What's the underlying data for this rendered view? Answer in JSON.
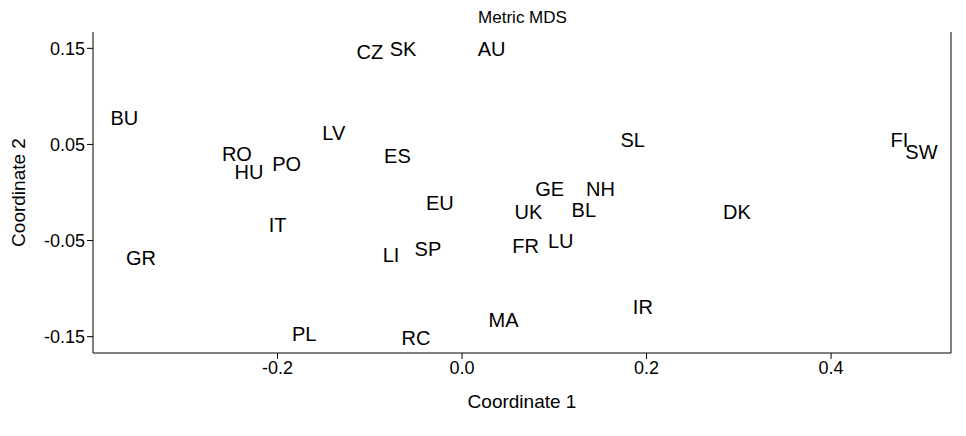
{
  "chart_data": {
    "type": "scatter",
    "title": "Metric MDS",
    "x_label": "Coordinate 1",
    "y_label": "Coordinate 2",
    "labels": [
      "BU",
      "CZ",
      "SK",
      "AU",
      "LV",
      "RO",
      "HU",
      "PO",
      "ES",
      "SL",
      "FI",
      "SW",
      "GE",
      "NH",
      "EU",
      "UK",
      "BL",
      "DK",
      "IT",
      "GR",
      "LI",
      "SP",
      "FR",
      "LU",
      "IR",
      "MA",
      "PL",
      "RC"
    ],
    "x": [
      -0.366,
      -0.1,
      -0.064,
      0.032,
      -0.139,
      -0.244,
      -0.231,
      -0.19,
      -0.07,
      0.185,
      0.474,
      0.498,
      0.095,
      0.15,
      -0.024,
      0.072,
      0.132,
      0.298,
      -0.2,
      -0.348,
      -0.077,
      -0.037,
      0.069,
      0.107,
      0.196,
      0.045,
      -0.171,
      -0.05
    ],
    "y": [
      0.078,
      0.146,
      0.149,
      0.149,
      0.062,
      0.04,
      0.021,
      0.03,
      0.038,
      0.055,
      0.055,
      0.042,
      0.004,
      0.004,
      -0.011,
      -0.02,
      -0.018,
      -0.02,
      -0.034,
      -0.068,
      -0.065,
      -0.059,
      -0.056,
      -0.05,
      -0.119,
      -0.133,
      -0.147,
      -0.151
    ],
    "color": "#000000",
    "marker": "text",
    "xlim": [
      -0.4,
      0.53
    ],
    "ylim": [
      -0.167,
      0.167
    ],
    "xticks": [
      -0.2,
      {
        "value": 0,
        "label": "0.0"
      },
      0.2,
      0.4
    ],
    "yticks": [
      -0.15,
      -0.05,
      0.05,
      0.15
    ],
    "grid": false
  }
}
